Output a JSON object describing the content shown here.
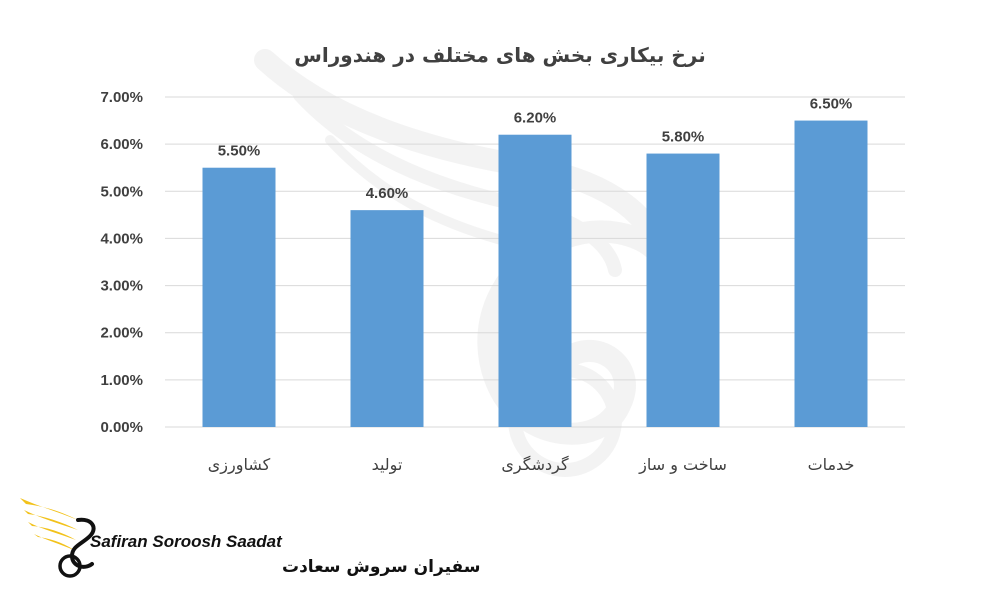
{
  "colors": {
    "bar": "#5b9bd5",
    "text": "#404040",
    "grid": "#d9d9d9",
    "logo_gold": "#f2c21b",
    "logo_dark": "#111111",
    "watermark": "#bfbfbf"
  },
  "chart_data": {
    "type": "bar",
    "title": "نرخ بیکاری بخش های مختلف در هندوراس",
    "xlabel": "",
    "ylabel": "",
    "categories": [
      "کشاورزی",
      "تولید",
      "گردشگری",
      "ساخت و ساز",
      "خدمات"
    ],
    "values": [
      5.5,
      4.6,
      6.2,
      5.8,
      6.5
    ],
    "data_labels": [
      "5.50%",
      "4.60%",
      "6.20%",
      "5.80%",
      "6.50%"
    ],
    "ylim": [
      0,
      7
    ],
    "yticks": [
      0,
      1,
      2,
      3,
      4,
      5,
      6,
      7
    ],
    "ytick_labels": [
      "0.00%",
      "1.00%",
      "2.00%",
      "3.00%",
      "4.00%",
      "5.00%",
      "6.00%",
      "7.00%"
    ],
    "grid": true,
    "legend": "none"
  },
  "brand": {
    "logo_icon": "eagle-wing-s-logo-icon",
    "name_en": "Safiran Soroosh Saadat",
    "name_fa": "سفیران سروش سعادت"
  }
}
